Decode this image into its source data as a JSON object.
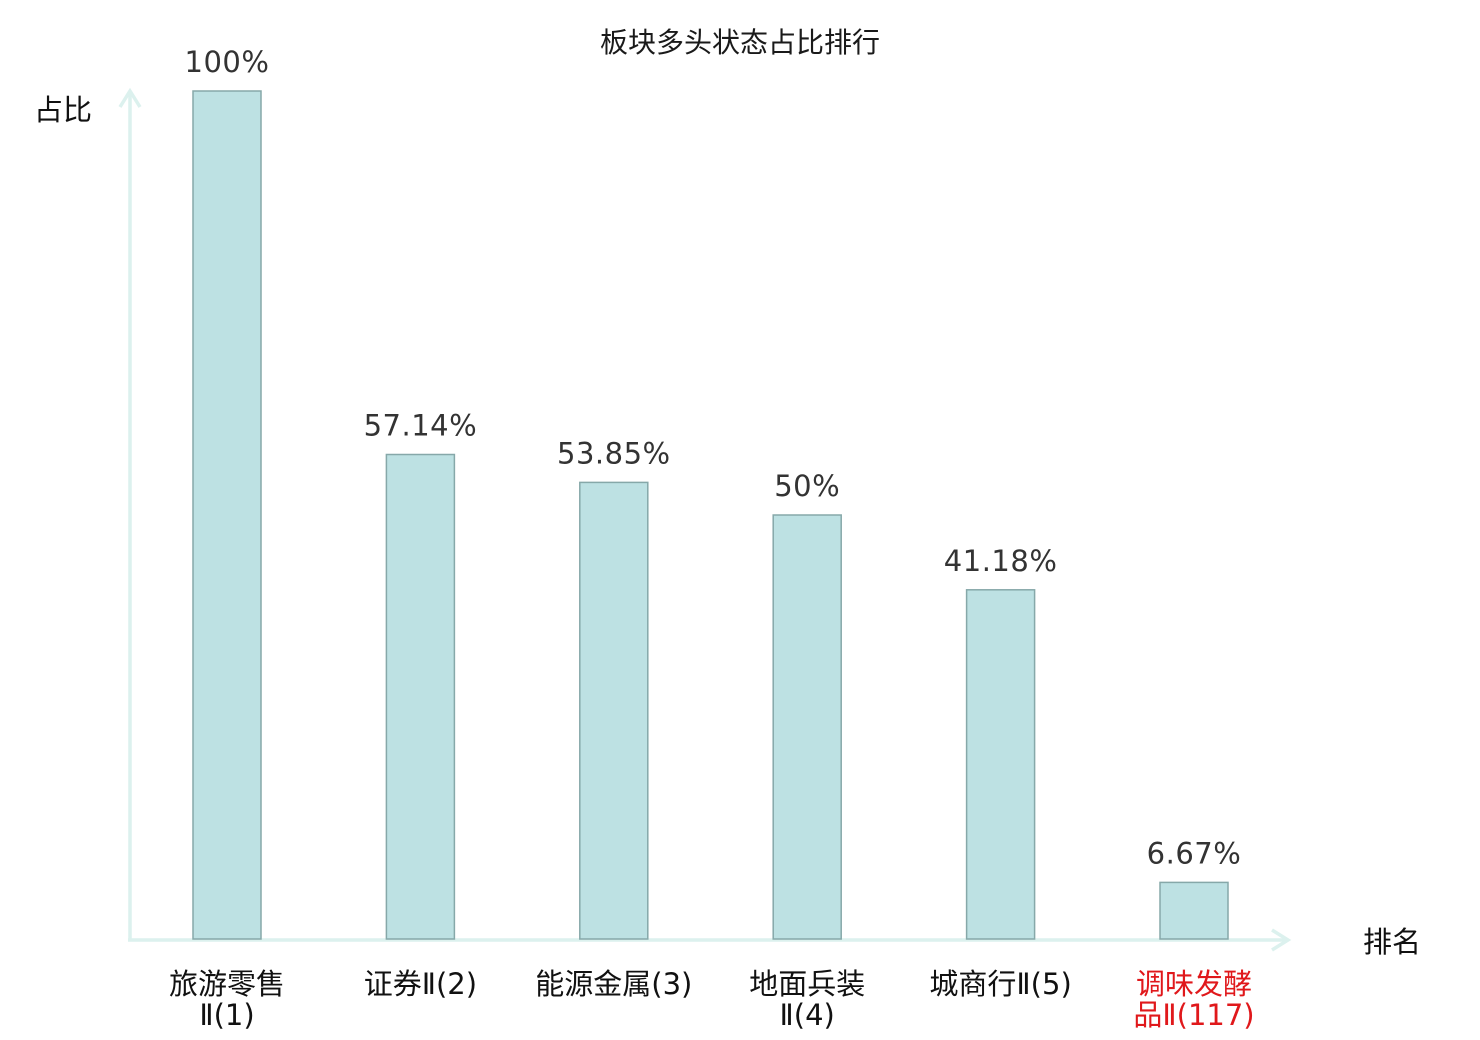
{
  "chart_data": {
    "type": "bar",
    "title": "板块多头状态占比排行",
    "ylabel": "占比",
    "xlabel": "排名",
    "ylim": [
      0,
      100
    ],
    "grid": false,
    "legend": "none",
    "categories": [
      [
        "旅游零售",
        "Ⅱ(1)"
      ],
      [
        "证券Ⅱ(2)"
      ],
      [
        "能源金属(3)"
      ],
      [
        "地面兵装",
        "Ⅱ(4)"
      ],
      [
        "城商行Ⅱ(5)"
      ],
      [
        "调味发酵",
        "品Ⅱ(117)"
      ]
    ],
    "values": [
      100,
      57.14,
      53.85,
      50,
      41.18,
      6.67
    ],
    "value_labels": [
      "100%",
      "57.14%",
      "53.85%",
      "50%",
      "41.18%",
      "6.67%"
    ],
    "highlight_index": 5,
    "colors": {
      "bar_fill": "#bde1e3",
      "bar_stroke": "#86a8a9",
      "axis": "#dcf1ee",
      "highlight_label": "#e0181b",
      "label": "#111111",
      "value_label": "#333333"
    }
  }
}
